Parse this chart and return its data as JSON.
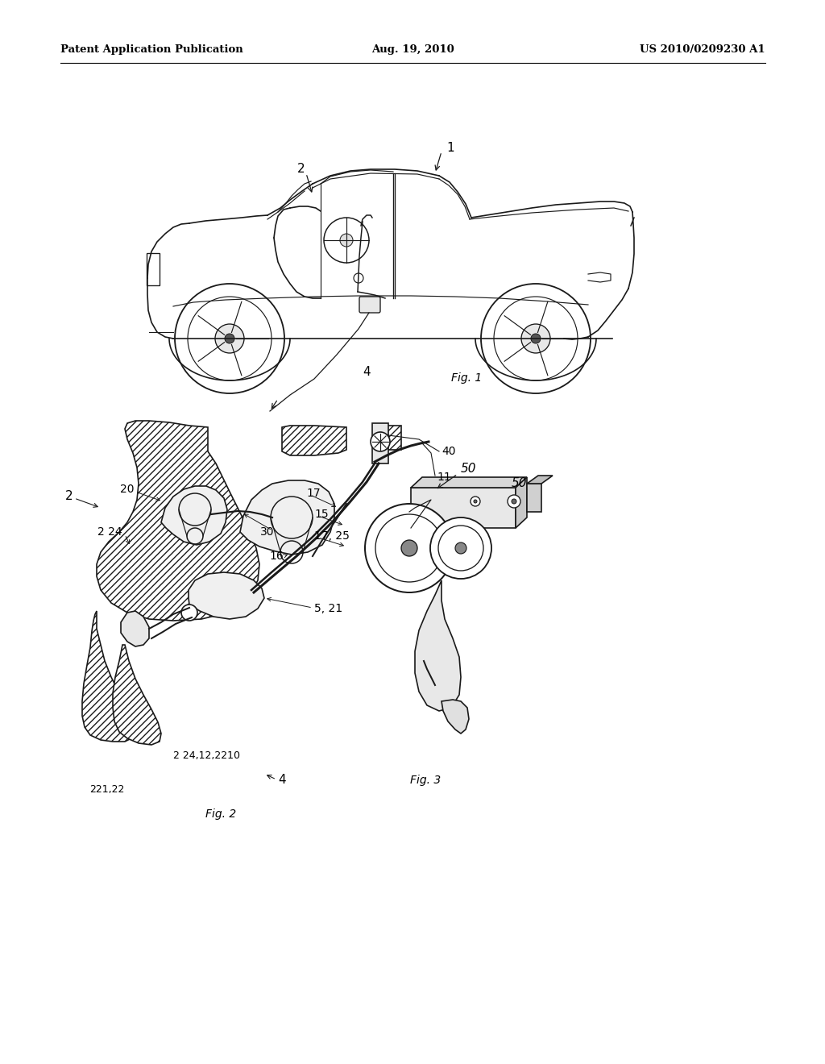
{
  "bg_color": "#ffffff",
  "header_left": "Patent Application Publication",
  "header_center": "Aug. 19, 2010",
  "header_right": "US 2010/0209230 A1",
  "fig1_label": "Fig. 1",
  "fig2_label": "Fig. 2",
  "fig3_label": "Fig. 3",
  "text_color": "#000000",
  "line_color": "#1a1a1a"
}
